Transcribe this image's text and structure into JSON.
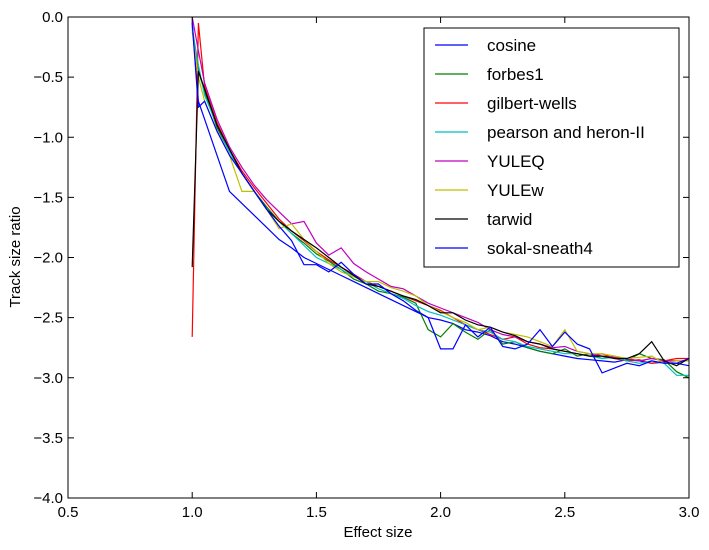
{
  "chart_data": {
    "type": "line",
    "title": "",
    "xlabel": "Effect size",
    "ylabel": "Track size ratio",
    "xlim": [
      0.5,
      3.0
    ],
    "ylim": [
      -4.0,
      0.0
    ],
    "xticks": [
      0.5,
      1.0,
      1.5,
      2.0,
      2.5,
      3.0
    ],
    "xtick_labels": [
      "0.5",
      "1.0",
      "1.5",
      "2.0",
      "2.5",
      "3.0"
    ],
    "yticks": [
      0.0,
      -0.5,
      -1.0,
      -1.5,
      -2.0,
      -2.5,
      -3.0,
      -3.5,
      -4.0
    ],
    "ytick_labels": [
      "0.0",
      "−0.5",
      "−1.0",
      "−1.5",
      "−2.0",
      "−2.5",
      "−3.0",
      "−3.5",
      "−4.0"
    ],
    "grid": false,
    "legend": "top-right",
    "series": [
      {
        "name": "cosine",
        "color": "#0000ff",
        "x": [
          1.0,
          1.025,
          1.05,
          1.1,
          1.15,
          1.2,
          1.25,
          1.3,
          1.35,
          1.4,
          1.45,
          1.5,
          1.55,
          1.6,
          1.65,
          1.7,
          1.75,
          1.8,
          1.85,
          1.9,
          1.95,
          2.0,
          2.05,
          2.1,
          2.15,
          2.2,
          2.25,
          2.3,
          2.35,
          2.4,
          2.45,
          2.5,
          2.55,
          2.6,
          2.65,
          2.7,
          2.75,
          2.8,
          2.85,
          2.9,
          2.95,
          3.0
        ],
        "values": [
          -0.05,
          -0.7,
          -0.85,
          -1.15,
          -1.45,
          -1.55,
          -1.65,
          -1.75,
          -1.85,
          -1.92,
          -2.0,
          -2.05,
          -2.1,
          -2.15,
          -2.2,
          -2.25,
          -2.3,
          -2.35,
          -2.4,
          -2.45,
          -2.5,
          -2.52,
          -2.55,
          -2.6,
          -2.62,
          -2.65,
          -2.7,
          -2.72,
          -2.75,
          -2.78,
          -2.8,
          -2.82,
          -2.84,
          -2.85,
          -2.86,
          -2.87,
          -2.85,
          -2.86,
          -2.88,
          -2.87,
          -2.88,
          -2.9
        ]
      },
      {
        "name": "forbes1",
        "color": "#008000",
        "x": [
          1.0,
          1.025,
          1.05,
          1.1,
          1.15,
          1.2,
          1.25,
          1.3,
          1.35,
          1.4,
          1.45,
          1.5,
          1.55,
          1.6,
          1.65,
          1.7,
          1.75,
          1.8,
          1.85,
          1.9,
          1.95,
          2.0,
          2.05,
          2.1,
          2.15,
          2.2,
          2.25,
          2.3,
          2.35,
          2.4,
          2.45,
          2.5,
          2.55,
          2.6,
          2.65,
          2.7,
          2.75,
          2.8,
          2.85,
          2.9,
          2.95,
          3.0
        ],
        "values": [
          -0.08,
          -0.45,
          -0.62,
          -0.92,
          -1.12,
          -1.3,
          -1.45,
          -1.58,
          -1.7,
          -1.8,
          -1.88,
          -1.97,
          -2.03,
          -2.1,
          -2.18,
          -2.22,
          -2.28,
          -2.3,
          -2.33,
          -2.38,
          -2.6,
          -2.66,
          -2.55,
          -2.62,
          -2.68,
          -2.6,
          -2.72,
          -2.7,
          -2.75,
          -2.78,
          -2.8,
          -2.76,
          -2.82,
          -2.8,
          -2.84,
          -2.82,
          -2.86,
          -2.8,
          -2.84,
          -2.85,
          -2.95,
          -3.0
        ]
      },
      {
        "name": "gilbert-wells",
        "color": "#ff0000",
        "x": [
          1.0,
          1.025,
          1.05,
          1.1,
          1.15,
          1.2,
          1.25,
          1.3,
          1.35,
          1.4,
          1.45,
          1.5,
          1.55,
          1.6,
          1.65,
          1.7,
          1.75,
          1.8,
          1.85,
          1.9,
          1.95,
          2.0,
          2.05,
          2.1,
          2.15,
          2.2,
          2.25,
          2.3,
          2.35,
          2.4,
          2.45,
          2.5,
          2.55,
          2.6,
          2.65,
          2.7,
          2.75,
          2.8,
          2.85,
          2.9,
          2.95,
          3.0
        ],
        "values": [
          -2.66,
          -0.05,
          -0.58,
          -0.88,
          -1.1,
          -1.28,
          -1.42,
          -1.55,
          -1.68,
          -1.78,
          -1.86,
          -1.95,
          -2.02,
          -2.08,
          -2.14,
          -2.2,
          -2.24,
          -2.28,
          -2.32,
          -2.36,
          -2.4,
          -2.44,
          -2.5,
          -2.56,
          -2.6,
          -2.64,
          -2.68,
          -2.66,
          -2.72,
          -2.75,
          -2.76,
          -2.78,
          -2.8,
          -2.82,
          -2.8,
          -2.84,
          -2.86,
          -2.85,
          -2.88,
          -2.86,
          -2.84,
          -2.84
        ]
      },
      {
        "name": "pearson and heron-II",
        "color": "#00bfbf",
        "x": [
          1.0,
          1.025,
          1.05,
          1.1,
          1.15,
          1.2,
          1.25,
          1.3,
          1.35,
          1.4,
          1.45,
          1.5,
          1.55,
          1.6,
          1.65,
          1.7,
          1.75,
          1.8,
          1.85,
          1.9,
          1.95,
          2.0,
          2.05,
          2.1,
          2.15,
          2.2,
          2.25,
          2.3,
          2.35,
          2.4,
          2.45,
          2.5,
          2.55,
          2.6,
          2.65,
          2.7,
          2.75,
          2.8,
          2.85,
          2.9,
          2.95,
          3.0
        ],
        "values": [
          -0.1,
          -0.4,
          -0.65,
          -0.9,
          -1.12,
          -1.3,
          -1.45,
          -1.6,
          -1.7,
          -1.8,
          -1.9,
          -2.0,
          -2.05,
          -2.1,
          -2.16,
          -2.2,
          -2.26,
          -2.3,
          -2.34,
          -2.4,
          -2.45,
          -2.48,
          -2.52,
          -2.56,
          -2.6,
          -2.62,
          -2.68,
          -2.7,
          -2.74,
          -2.76,
          -2.78,
          -2.8,
          -2.8,
          -2.82,
          -2.84,
          -2.83,
          -2.86,
          -2.88,
          -2.86,
          -2.88,
          -2.98,
          -2.98
        ]
      },
      {
        "name": "YULEQ",
        "color": "#bf00bf",
        "x": [
          1.0,
          1.025,
          1.05,
          1.1,
          1.15,
          1.2,
          1.25,
          1.3,
          1.35,
          1.4,
          1.45,
          1.5,
          1.55,
          1.6,
          1.65,
          1.7,
          1.75,
          1.8,
          1.85,
          1.9,
          1.95,
          2.0,
          2.05,
          2.1,
          2.15,
          2.2,
          2.25,
          2.3,
          2.35,
          2.4,
          2.45,
          2.5,
          2.55,
          2.6,
          2.65,
          2.7,
          2.75,
          2.8,
          2.85,
          2.9,
          2.95,
          3.0
        ],
        "values": [
          0.0,
          -0.28,
          -0.55,
          -0.85,
          -1.08,
          -1.25,
          -1.4,
          -1.52,
          -1.62,
          -1.72,
          -1.7,
          -1.88,
          -1.98,
          -1.92,
          -2.05,
          -2.12,
          -2.18,
          -2.24,
          -2.26,
          -2.32,
          -2.38,
          -2.42,
          -2.46,
          -2.5,
          -2.54,
          -2.6,
          -2.64,
          -2.66,
          -2.7,
          -2.72,
          -2.75,
          -2.74,
          -2.78,
          -2.8,
          -2.82,
          -2.83,
          -2.84,
          -2.86,
          -2.84,
          -2.86,
          -2.86,
          -2.86
        ]
      },
      {
        "name": "YULEw",
        "color": "#bfbf00",
        "x": [
          1.0,
          1.025,
          1.05,
          1.1,
          1.15,
          1.2,
          1.25,
          1.3,
          1.35,
          1.4,
          1.45,
          1.5,
          1.55,
          1.6,
          1.65,
          1.7,
          1.75,
          1.8,
          1.85,
          1.9,
          1.95,
          2.0,
          2.05,
          2.1,
          2.15,
          2.2,
          2.25,
          2.3,
          2.35,
          2.4,
          2.45,
          2.5,
          2.55,
          2.6,
          2.65,
          2.7,
          2.75,
          2.8,
          2.85,
          2.9,
          2.95,
          3.0
        ],
        "values": [
          -0.12,
          -0.5,
          -0.7,
          -0.95,
          -1.15,
          -1.45,
          -1.45,
          -1.6,
          -1.76,
          -1.72,
          -1.85,
          -1.95,
          -2.05,
          -2.12,
          -2.16,
          -2.2,
          -2.2,
          -2.25,
          -2.28,
          -2.32,
          -2.4,
          -2.45,
          -2.5,
          -2.54,
          -2.6,
          -2.58,
          -2.62,
          -2.64,
          -2.66,
          -2.7,
          -2.74,
          -2.6,
          -2.78,
          -2.8,
          -2.8,
          -2.82,
          -2.84,
          -2.83,
          -2.82,
          -2.88,
          -2.86,
          -2.86
        ]
      },
      {
        "name": "tarwid",
        "color": "#000000",
        "x": [
          1.0,
          1.025,
          1.05,
          1.1,
          1.15,
          1.2,
          1.25,
          1.3,
          1.35,
          1.4,
          1.45,
          1.5,
          1.55,
          1.6,
          1.65,
          1.7,
          1.75,
          1.8,
          1.85,
          1.9,
          1.95,
          2.0,
          2.05,
          2.1,
          2.15,
          2.2,
          2.25,
          2.3,
          2.35,
          2.4,
          2.45,
          2.5,
          2.55,
          2.6,
          2.65,
          2.7,
          2.75,
          2.8,
          2.85,
          2.9,
          2.95,
          3.0
        ],
        "values": [
          -2.08,
          -0.45,
          -0.6,
          -0.9,
          -1.1,
          -1.3,
          -1.45,
          -1.6,
          -1.7,
          -1.78,
          -1.85,
          -1.92,
          -2.0,
          -2.08,
          -2.15,
          -2.22,
          -2.24,
          -2.28,
          -2.32,
          -2.35,
          -2.4,
          -2.46,
          -2.46,
          -2.52,
          -2.56,
          -2.58,
          -2.62,
          -2.65,
          -2.7,
          -2.72,
          -2.76,
          -2.78,
          -2.8,
          -2.82,
          -2.82,
          -2.84,
          -2.84,
          -2.8,
          -2.7,
          -2.86,
          -2.9,
          -2.84
        ]
      },
      {
        "name": "sokal-sneath4",
        "color": "#0000ff",
        "x": [
          1.0,
          1.025,
          1.05,
          1.1,
          1.15,
          1.2,
          1.25,
          1.3,
          1.35,
          1.4,
          1.45,
          1.5,
          1.55,
          1.6,
          1.65,
          1.7,
          1.75,
          1.8,
          1.85,
          1.9,
          1.95,
          2.0,
          2.05,
          2.1,
          2.15,
          2.2,
          2.25,
          2.3,
          2.35,
          2.4,
          2.45,
          2.5,
          2.55,
          2.6,
          2.65,
          2.7,
          2.75,
          2.8,
          2.85,
          2.9,
          2.95,
          3.0
        ],
        "values": [
          -0.05,
          -0.75,
          -0.7,
          -0.95,
          -1.15,
          -1.3,
          -1.45,
          -1.6,
          -1.74,
          -1.86,
          -2.06,
          -2.06,
          -2.12,
          -2.04,
          -2.14,
          -2.22,
          -2.22,
          -2.3,
          -2.36,
          -2.44,
          -2.5,
          -2.76,
          -2.76,
          -2.56,
          -2.66,
          -2.58,
          -2.74,
          -2.76,
          -2.72,
          -2.6,
          -2.74,
          -2.62,
          -2.72,
          -2.76,
          -2.96,
          -2.92,
          -2.88,
          -2.9,
          -2.86,
          -2.88,
          -2.88,
          -2.84
        ]
      }
    ]
  }
}
